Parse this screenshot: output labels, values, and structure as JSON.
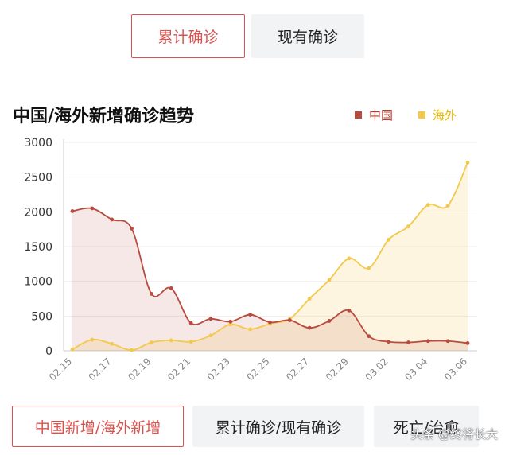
{
  "tabs_top": [
    {
      "label": "累计确诊",
      "active": true
    },
    {
      "label": "现有确诊",
      "active": false
    }
  ],
  "tabs_bottom": [
    {
      "label": "中国新增/海外新增",
      "active": true
    },
    {
      "label": "累计确诊/现有确诊",
      "active": false
    },
    {
      "label": "死亡/治愈",
      "active": false
    }
  ],
  "watermark": "头条 @终将长大",
  "chart_data": {
    "type": "area",
    "title": "中国/海外新增确诊趋势",
    "xlabel": "",
    "ylabel": "",
    "ylim": [
      0,
      3000
    ],
    "yticks": [
      0,
      500,
      1000,
      1500,
      2000,
      2500,
      3000
    ],
    "x": [
      "02.15",
      "02.16",
      "02.17",
      "02.18",
      "02.19",
      "02.20",
      "02.21",
      "02.22",
      "02.23",
      "02.24",
      "02.25",
      "02.26",
      "02.27",
      "02.28",
      "02.29",
      "03.01",
      "03.02",
      "03.03",
      "03.04",
      "03.05",
      "03.06"
    ],
    "x_tick_labels": [
      "02.15",
      "02.17",
      "02.19",
      "02.21",
      "02.23",
      "02.25",
      "02.27",
      "02.29",
      "03.02",
      "03.04",
      "03.06"
    ],
    "series": [
      {
        "name": "中国",
        "color": "#b94a3e",
        "values": [
          2010,
          2050,
          1890,
          1760,
          820,
          900,
          400,
          460,
          420,
          520,
          410,
          440,
          330,
          430,
          580,
          210,
          130,
          120,
          140,
          140,
          110
        ]
      },
      {
        "name": "海外",
        "color": "#f2c94c",
        "values": [
          20,
          160,
          100,
          10,
          120,
          150,
          130,
          220,
          380,
          310,
          390,
          460,
          750,
          1020,
          1330,
          1190,
          1600,
          1790,
          2100,
          2090,
          2710
        ]
      }
    ],
    "grid": true,
    "legend": "top-right"
  }
}
